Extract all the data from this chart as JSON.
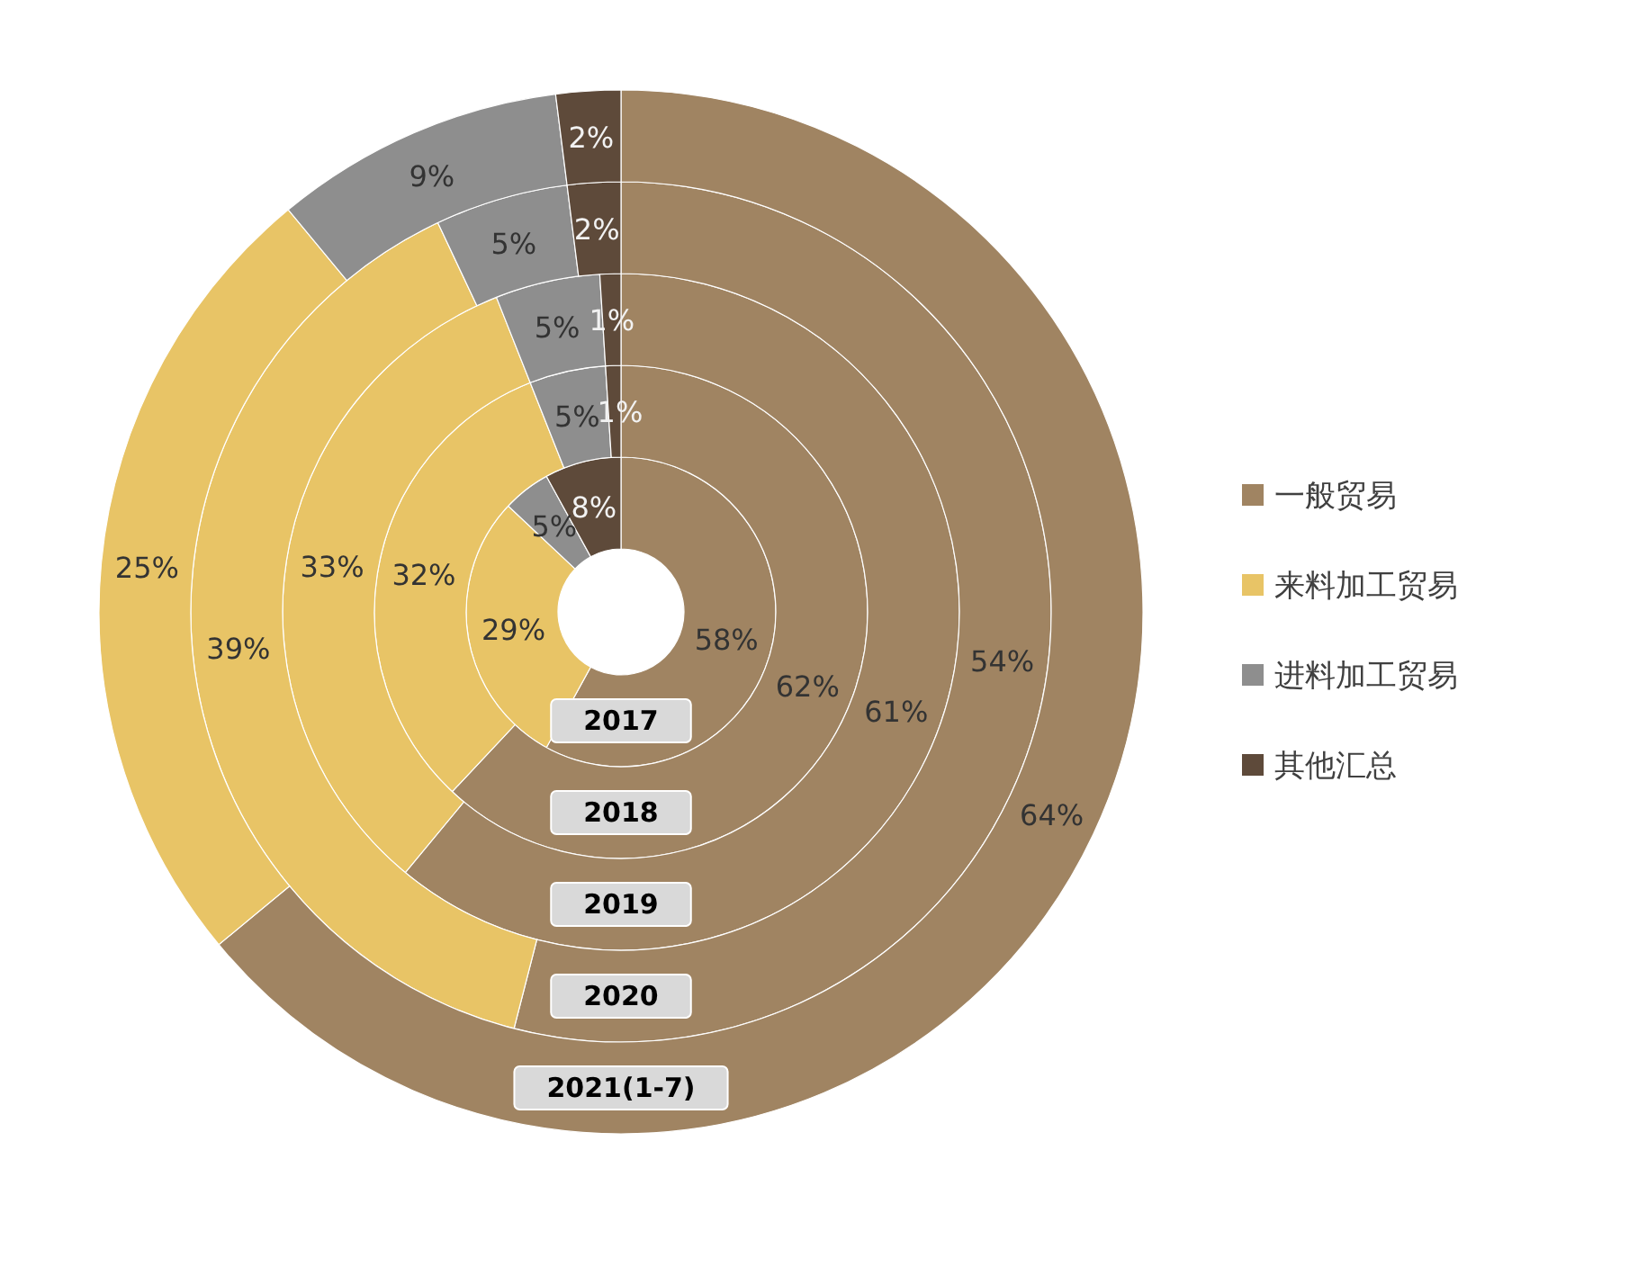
{
  "chart_data": [
    {
      "type": "donut",
      "title": "2017",
      "categories": [
        "一般贸易",
        "来料加工贸易",
        "进料加工贸易",
        "其他汇总"
      ],
      "values": [
        58,
        29,
        5,
        8
      ],
      "value_labels": [
        "58%",
        "29%",
        "5%",
        "8%"
      ],
      "colors": [
        "#a08462",
        "#e8c466",
        "#8e8e8e",
        "#5e4a3a"
      ],
      "legend": "right"
    },
    {
      "type": "donut",
      "title": "2018",
      "values": [
        62,
        32,
        5,
        1
      ],
      "value_labels": [
        "62%",
        "32%",
        "5%",
        "1%"
      ],
      "colors": [
        "#a08462",
        "#e8c466",
        "#8e8e8e",
        "#5e4a3a"
      ]
    },
    {
      "type": "donut",
      "title": "2019",
      "values": [
        61,
        33,
        5,
        1
      ],
      "value_labels": [
        "61%",
        "33%",
        "5%",
        "1%"
      ],
      "colors": [
        "#a08462",
        "#e8c466",
        "#8e8e8e",
        "#5e4a3a"
      ]
    },
    {
      "type": "donut",
      "title": "2020",
      "values": [
        54,
        39,
        5,
        2
      ],
      "value_labels": [
        "54%",
        "39%",
        "5%",
        "2%"
      ],
      "colors": [
        "#a08462",
        "#e8c466",
        "#8e8e8e",
        "#5e4a3a"
      ]
    },
    {
      "type": "donut",
      "title": "2021(1-7)",
      "values": [
        64,
        25,
        9,
        2
      ],
      "value_labels": [
        "64%",
        "25%",
        "9%",
        "2%"
      ],
      "colors": [
        "#a08462",
        "#e8c466",
        "#8e8e8e",
        "#5e4a3a"
      ]
    }
  ]
}
